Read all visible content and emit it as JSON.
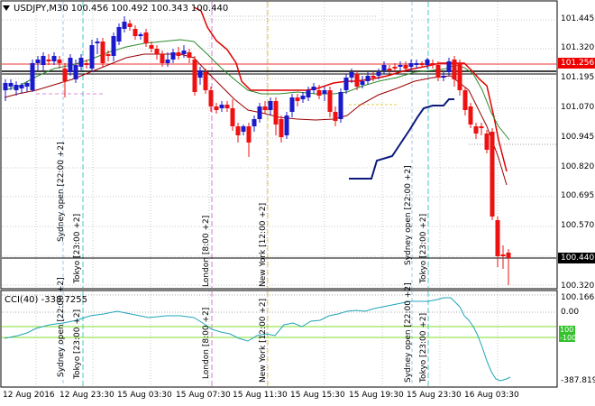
{
  "header": {
    "symbol_timeframe": "USDJPY,M30",
    "open": "100.456",
    "high": "100.492",
    "low": "100.343",
    "close": "100.440"
  },
  "indicator": {
    "label": "CCI(40) -338.7255"
  },
  "price_axis": {
    "ticks": [
      "101.445",
      "101.320",
      "101.195",
      "101.070",
      "100.945",
      "100.820",
      "100.695",
      "100.570",
      "100.440",
      "100.320"
    ],
    "line_label": "101.256",
    "current_price": "100.440"
  },
  "indicator_axis": {
    "ticks": [
      "100.1661",
      "0.00",
      "-387.8194"
    ],
    "level_top": "100",
    "level_bottom": "-100"
  },
  "time_axis": [
    "12 Aug 2016",
    "12 Aug 23:30",
    "15 Aug 03:30",
    "15 Aug 07:30",
    "15 Aug 11:30",
    "15 Aug 15:30",
    "15 Aug 19:30",
    "15 Aug 23:30",
    "16 Aug 03:30"
  ],
  "sessions": {
    "sydney": "Sydney open [22:00 +2]",
    "tokyo": "Tokyo [23:00 +2]",
    "london": "London [8:00 +2]",
    "newyork": "New York [12:00 +2]"
  },
  "colors": {
    "bull": "#1a1acc",
    "bear": "#ee1111",
    "ma_red": "#e00000",
    "ma_green": "#2e8b2e",
    "ma_darkred": "#990000",
    "kijun": "#0b1a7a",
    "cci": "#21a3b8",
    "levels": "#7dde2e",
    "sydney_line": "#a2c7e8",
    "tokyo_line": "#45c8c8",
    "london_line": "#d57ad5",
    "newyork_line": "#e0c44b"
  }
}
